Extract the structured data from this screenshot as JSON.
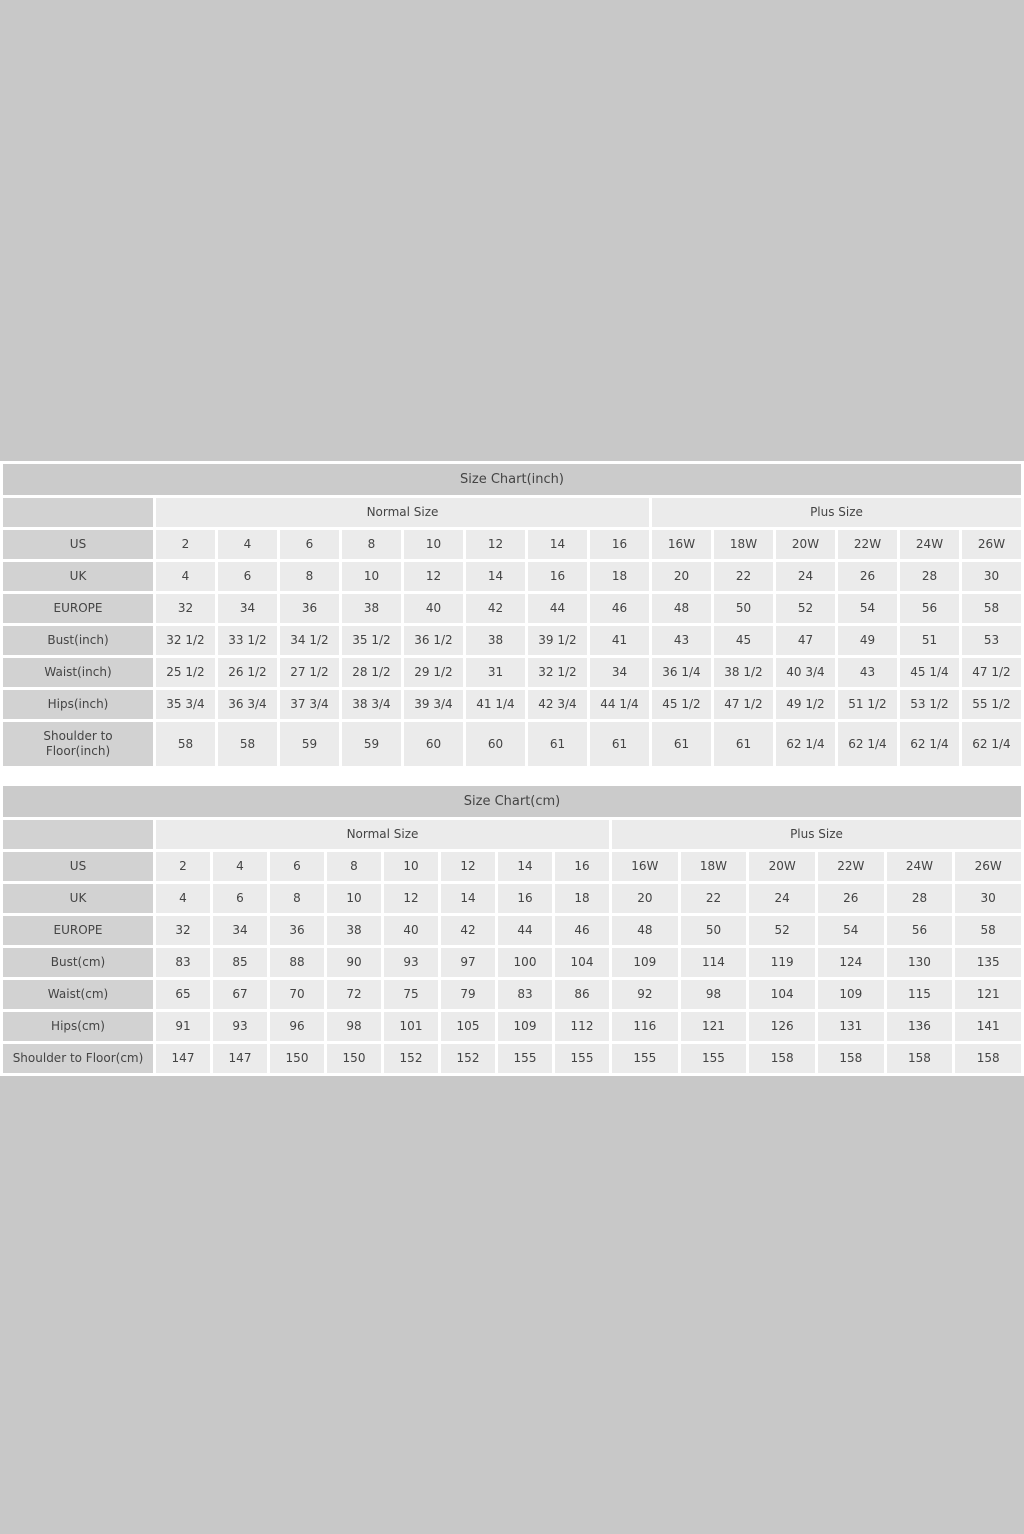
{
  "page": {
    "background_color": "#c8c8c8",
    "container_color": "#ffffff"
  },
  "colors": {
    "title_row_bg": "#cbcbcb",
    "row_label_bg": "#d2d2d2",
    "data_cell_bg": "#ebebeb",
    "text": "#444444"
  },
  "tables": [
    {
      "title": "Size Chart(inch)",
      "group_headers": [
        "Normal Size",
        "Plus Size"
      ],
      "rows": [
        {
          "label": "US",
          "values": [
            "2",
            "4",
            "6",
            "8",
            "10",
            "12",
            "14",
            "16",
            "16W",
            "18W",
            "20W",
            "22W",
            "24W",
            "26W"
          ]
        },
        {
          "label": "UK",
          "values": [
            "4",
            "6",
            "8",
            "10",
            "12",
            "14",
            "16",
            "18",
            "20",
            "22",
            "24",
            "26",
            "28",
            "30"
          ]
        },
        {
          "label": "EUROPE",
          "values": [
            "32",
            "34",
            "36",
            "38",
            "40",
            "42",
            "44",
            "46",
            "48",
            "50",
            "52",
            "54",
            "56",
            "58"
          ]
        },
        {
          "label": "Bust(inch)",
          "values": [
            "32 1/2",
            "33 1/2",
            "34 1/2",
            "35 1/2",
            "36 1/2",
            "38",
            "39 1/2",
            "41",
            "43",
            "45",
            "47",
            "49",
            "51",
            "53"
          ]
        },
        {
          "label": "Waist(inch)",
          "values": [
            "25 1/2",
            "26 1/2",
            "27 1/2",
            "28 1/2",
            "29 1/2",
            "31",
            "32 1/2",
            "34",
            "36 1/4",
            "38 1/2",
            "40 3/4",
            "43",
            "45 1/4",
            "47 1/2"
          ]
        },
        {
          "label": "Hips(inch)",
          "values": [
            "35 3/4",
            "36 3/4",
            "37 3/4",
            "38 3/4",
            "39 3/4",
            "41 1/4",
            "42 3/4",
            "44 1/4",
            "45 1/2",
            "47 1/2",
            "49 1/2",
            "51 1/2",
            "53 1/2",
            "55 1/2"
          ]
        },
        {
          "label": "Shoulder to\nFloor(inch)",
          "values": [
            "58",
            "58",
            "59",
            "59",
            "60",
            "60",
            "61",
            "61",
            "61",
            "61",
            "62 1/4",
            "62 1/4",
            "62 1/4",
            "62 1/4"
          ]
        }
      ]
    },
    {
      "title": "Size Chart(cm)",
      "group_headers": [
        "Normal Size",
        "Plus Size"
      ],
      "rows": [
        {
          "label": "US",
          "values": [
            "2",
            "4",
            "6",
            "8",
            "10",
            "12",
            "14",
            "16",
            "16W",
            "18W",
            "20W",
            "22W",
            "24W",
            "26W"
          ]
        },
        {
          "label": "UK",
          "values": [
            "4",
            "6",
            "8",
            "10",
            "12",
            "14",
            "16",
            "18",
            "20",
            "22",
            "24",
            "26",
            "28",
            "30"
          ]
        },
        {
          "label": "EUROPE",
          "values": [
            "32",
            "34",
            "36",
            "38",
            "40",
            "42",
            "44",
            "46",
            "48",
            "50",
            "52",
            "54",
            "56",
            "58"
          ]
        },
        {
          "label": "Bust(cm)",
          "values": [
            "83",
            "85",
            "88",
            "90",
            "93",
            "97",
            "100",
            "104",
            "109",
            "114",
            "119",
            "124",
            "130",
            "135"
          ]
        },
        {
          "label": "Waist(cm)",
          "values": [
            "65",
            "67",
            "70",
            "72",
            "75",
            "79",
            "83",
            "86",
            "92",
            "98",
            "104",
            "109",
            "115",
            "121"
          ]
        },
        {
          "label": "Hips(cm)",
          "values": [
            "91",
            "93",
            "96",
            "98",
            "101",
            "105",
            "109",
            "112",
            "116",
            "121",
            "126",
            "131",
            "136",
            "141"
          ]
        },
        {
          "label": "Shoulder to Floor(cm)",
          "values": [
            "147",
            "147",
            "150",
            "150",
            "152",
            "152",
            "155",
            "155",
            "155",
            "155",
            "158",
            "158",
            "158",
            "158"
          ]
        }
      ]
    }
  ]
}
